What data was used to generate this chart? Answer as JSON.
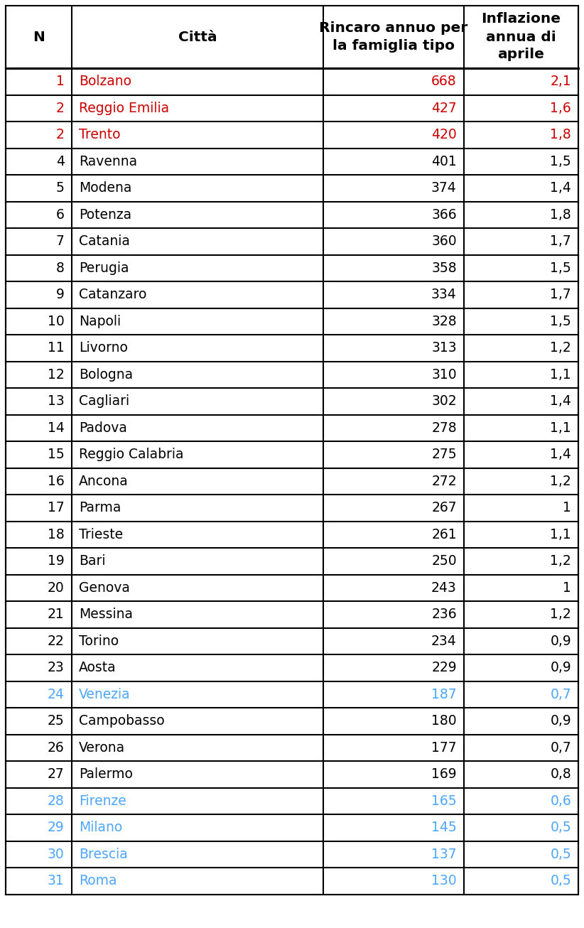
{
  "rows": [
    {
      "n": "1",
      "city": "Bolzano",
      "rincaro": "668",
      "inflazione": "2,1",
      "color_n": "#cc0000",
      "color_city": "#cc0000",
      "color_vals": "#cc0000"
    },
    {
      "n": "2",
      "city": "Reggio Emilia",
      "rincaro": "427",
      "inflazione": "1,6",
      "color_n": "#cc0000",
      "color_city": "#cc0000",
      "color_vals": "#cc0000"
    },
    {
      "n": "2",
      "city": "Trento",
      "rincaro": "420",
      "inflazione": "1,8",
      "color_n": "#cc0000",
      "color_city": "#cc0000",
      "color_vals": "#cc0000"
    },
    {
      "n": "4",
      "city": "Ravenna",
      "rincaro": "401",
      "inflazione": "1,5",
      "color_n": "#000000",
      "color_city": "#000000",
      "color_vals": "#000000"
    },
    {
      "n": "5",
      "city": "Modena",
      "rincaro": "374",
      "inflazione": "1,4",
      "color_n": "#000000",
      "color_city": "#000000",
      "color_vals": "#000000"
    },
    {
      "n": "6",
      "city": "Potenza",
      "rincaro": "366",
      "inflazione": "1,8",
      "color_n": "#000000",
      "color_city": "#000000",
      "color_vals": "#000000"
    },
    {
      "n": "7",
      "city": "Catania",
      "rincaro": "360",
      "inflazione": "1,7",
      "color_n": "#000000",
      "color_city": "#000000",
      "color_vals": "#000000"
    },
    {
      "n": "8",
      "city": "Perugia",
      "rincaro": "358",
      "inflazione": "1,5",
      "color_n": "#000000",
      "color_city": "#000000",
      "color_vals": "#000000"
    },
    {
      "n": "9",
      "city": "Catanzaro",
      "rincaro": "334",
      "inflazione": "1,7",
      "color_n": "#000000",
      "color_city": "#000000",
      "color_vals": "#000000"
    },
    {
      "n": "10",
      "city": "Napoli",
      "rincaro": "328",
      "inflazione": "1,5",
      "color_n": "#000000",
      "color_city": "#000000",
      "color_vals": "#000000"
    },
    {
      "n": "11",
      "city": "Livorno",
      "rincaro": "313",
      "inflazione": "1,2",
      "color_n": "#000000",
      "color_city": "#000000",
      "color_vals": "#000000"
    },
    {
      "n": "12",
      "city": "Bologna",
      "rincaro": "310",
      "inflazione": "1,1",
      "color_n": "#000000",
      "color_city": "#000000",
      "color_vals": "#000000"
    },
    {
      "n": "13",
      "city": "Cagliari",
      "rincaro": "302",
      "inflazione": "1,4",
      "color_n": "#000000",
      "color_city": "#000000",
      "color_vals": "#000000"
    },
    {
      "n": "14",
      "city": "Padova",
      "rincaro": "278",
      "inflazione": "1,1",
      "color_n": "#000000",
      "color_city": "#000000",
      "color_vals": "#000000"
    },
    {
      "n": "15",
      "city": "Reggio Calabria",
      "rincaro": "275",
      "inflazione": "1,4",
      "color_n": "#000000",
      "color_city": "#000000",
      "color_vals": "#000000"
    },
    {
      "n": "16",
      "city": "Ancona",
      "rincaro": "272",
      "inflazione": "1,2",
      "color_n": "#000000",
      "color_city": "#000000",
      "color_vals": "#000000"
    },
    {
      "n": "17",
      "city": "Parma",
      "rincaro": "267",
      "inflazione": "1",
      "color_n": "#000000",
      "color_city": "#000000",
      "color_vals": "#000000"
    },
    {
      "n": "18",
      "city": "Trieste",
      "rincaro": "261",
      "inflazione": "1,1",
      "color_n": "#000000",
      "color_city": "#000000",
      "color_vals": "#000000"
    },
    {
      "n": "19",
      "city": "Bari",
      "rincaro": "250",
      "inflazione": "1,2",
      "color_n": "#000000",
      "color_city": "#000000",
      "color_vals": "#000000"
    },
    {
      "n": "20",
      "city": "Genova",
      "rincaro": "243",
      "inflazione": "1",
      "color_n": "#000000",
      "color_city": "#000000",
      "color_vals": "#000000"
    },
    {
      "n": "21",
      "city": "Messina",
      "rincaro": "236",
      "inflazione": "1,2",
      "color_n": "#000000",
      "color_city": "#000000",
      "color_vals": "#000000"
    },
    {
      "n": "22",
      "city": "Torino",
      "rincaro": "234",
      "inflazione": "0,9",
      "color_n": "#000000",
      "color_city": "#000000",
      "color_vals": "#000000"
    },
    {
      "n": "23",
      "city": "Aosta",
      "rincaro": "229",
      "inflazione": "0,9",
      "color_n": "#000000",
      "color_city": "#000000",
      "color_vals": "#000000"
    },
    {
      "n": "24",
      "city": "Venezia",
      "rincaro": "187",
      "inflazione": "0,7",
      "color_n": "#4da6ff",
      "color_city": "#4da6ff",
      "color_vals": "#4da6ff"
    },
    {
      "n": "25",
      "city": "Campobasso",
      "rincaro": "180",
      "inflazione": "0,9",
      "color_n": "#000000",
      "color_city": "#000000",
      "color_vals": "#000000"
    },
    {
      "n": "26",
      "city": "Verona",
      "rincaro": "177",
      "inflazione": "0,7",
      "color_n": "#000000",
      "color_city": "#000000",
      "color_vals": "#000000"
    },
    {
      "n": "27",
      "city": "Palermo",
      "rincaro": "169",
      "inflazione": "0,8",
      "color_n": "#000000",
      "color_city": "#000000",
      "color_vals": "#000000"
    },
    {
      "n": "28",
      "city": "Firenze",
      "rincaro": "165",
      "inflazione": "0,6",
      "color_n": "#4da6ff",
      "color_city": "#4da6ff",
      "color_vals": "#4da6ff"
    },
    {
      "n": "29",
      "city": "Milano",
      "rincaro": "145",
      "inflazione": "0,5",
      "color_n": "#4da6ff",
      "color_city": "#4da6ff",
      "color_vals": "#4da6ff"
    },
    {
      "n": "30",
      "city": "Brescia",
      "rincaro": "137",
      "inflazione": "0,5",
      "color_n": "#4da6ff",
      "color_city": "#4da6ff",
      "color_vals": "#4da6ff"
    },
    {
      "n": "31",
      "city": "Roma",
      "rincaro": "130",
      "inflazione": "0,5",
      "color_n": "#4da6ff",
      "color_city": "#4da6ff",
      "color_vals": "#4da6ff"
    }
  ],
  "col_header_n": "N",
  "col_header_city": "Città",
  "col_header_rincaro": "Rincaro annuo per\nla famiglia tipo",
  "col_header_inflazione": "Inflazione\nannua di\naprile",
  "background": "#ffffff",
  "border_color": "#000000",
  "header_bg": "#ffffff",
  "font_size": 13.5,
  "header_font_size": 14.5
}
